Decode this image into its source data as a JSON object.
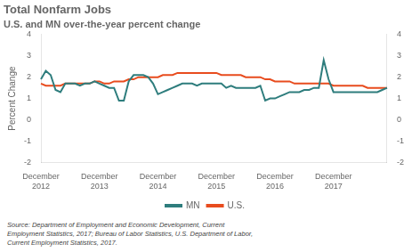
{
  "chart_data": {
    "type": "line",
    "title": "Total Nonfarm Jobs",
    "subtitle": "U.S. and MN over-the-year percent change",
    "ylabel": "Percent Change",
    "source": "Source: Department of Employment and Economic Development, Current\nEmployment Statistics, 2017; Bureau of Labor Statistics, U.S. Department of Labor,\nCurrent Employment Statistics, 2017.",
    "categories": [
      "December\n2012",
      null,
      null,
      null,
      null,
      null,
      null,
      null,
      null,
      null,
      null,
      null,
      "December\n2013",
      null,
      null,
      null,
      null,
      null,
      null,
      null,
      null,
      null,
      null,
      null,
      "December\n2014",
      null,
      null,
      null,
      null,
      null,
      null,
      null,
      null,
      null,
      null,
      null,
      "December\n2015",
      null,
      null,
      null,
      null,
      null,
      null,
      null,
      null,
      null,
      null,
      null,
      "December\n2016",
      null,
      null,
      null,
      null,
      null,
      null,
      null,
      null,
      null,
      null,
      null,
      "December\n2017",
      null,
      null,
      null,
      null,
      null,
      null,
      null,
      null,
      null,
      null,
      null
    ],
    "series": [
      {
        "name": "MN",
        "color": "#2e7d7d",
        "values": [
          1.9,
          2.3,
          2.1,
          1.4,
          1.3,
          1.7,
          1.7,
          1.7,
          1.6,
          1.7,
          1.7,
          1.8,
          1.7,
          1.6,
          1.5,
          1.5,
          0.9,
          0.9,
          1.8,
          2.1,
          2.1,
          2.1,
          2.0,
          1.7,
          1.2,
          1.3,
          1.4,
          1.5,
          1.6,
          1.7,
          1.7,
          1.7,
          1.6,
          1.7,
          1.7,
          1.7,
          1.7,
          1.7,
          1.5,
          1.6,
          1.5,
          1.5,
          1.5,
          1.5,
          1.5,
          1.6,
          0.9,
          1.0,
          1.0,
          1.1,
          1.2,
          1.3,
          1.3,
          1.3,
          1.4,
          1.4,
          1.5,
          1.5,
          2.8,
          1.9,
          1.3,
          1.3,
          1.3,
          1.3,
          1.3,
          1.3,
          1.3,
          1.3,
          1.3,
          1.3,
          1.4,
          1.5
        ]
      },
      {
        "name": "U.S.",
        "color": "#e84c1e",
        "values": [
          1.7,
          1.6,
          1.6,
          1.6,
          1.6,
          1.7,
          1.7,
          1.7,
          1.7,
          1.7,
          1.7,
          1.8,
          1.8,
          1.7,
          1.7,
          1.8,
          1.8,
          1.8,
          1.9,
          1.9,
          2.0,
          2.0,
          2.0,
          2.0,
          2.0,
          2.1,
          2.1,
          2.1,
          2.2,
          2.2,
          2.2,
          2.2,
          2.2,
          2.2,
          2.2,
          2.2,
          2.2,
          2.1,
          2.1,
          2.1,
          2.1,
          2.1,
          2.0,
          2.0,
          2.0,
          2.0,
          1.9,
          1.9,
          1.8,
          1.8,
          1.8,
          1.8,
          1.7,
          1.7,
          1.7,
          1.7,
          1.7,
          1.7,
          1.7,
          1.7,
          1.6,
          1.6,
          1.6,
          1.6,
          1.6,
          1.6,
          1.6,
          1.5,
          1.5,
          1.5,
          1.5,
          1.5
        ]
      }
    ],
    "ylim": [
      -2,
      4
    ],
    "yticks": [
      -2,
      -1,
      0,
      1,
      2,
      3,
      4
    ],
    "y2lim": [
      -2,
      4
    ],
    "y2ticks": [
      -2,
      -1,
      0,
      1,
      2,
      3,
      4
    ],
    "grid": false,
    "legend": "bottom"
  }
}
